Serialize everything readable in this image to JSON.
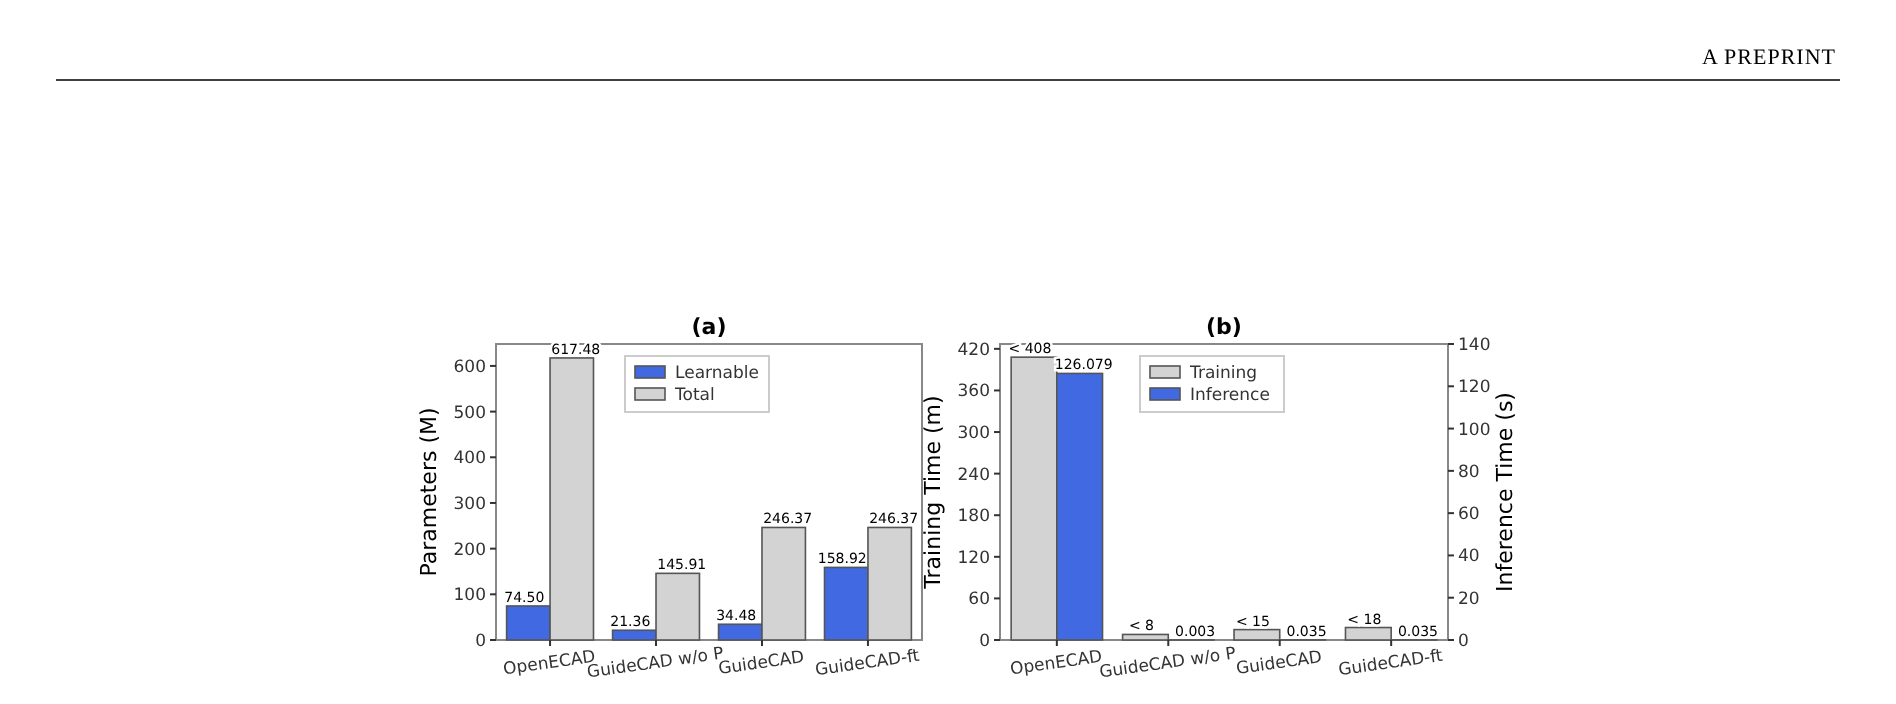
{
  "chart_data": [
    {
      "type": "bar",
      "title": "(a)",
      "ylabel": "Parameters (M)",
      "categories": [
        "OpenECAD",
        "GuideCAD w/o P",
        "GuideCAD",
        "GuideCAD-ft"
      ],
      "series": [
        {
          "name": "Learnable",
          "color": "#4169e1",
          "values": [
            74.5,
            21.36,
            34.48,
            158.92
          ],
          "value_labels": [
            "74.50",
            "21.36",
            "34.48",
            "158.92"
          ]
        },
        {
          "name": "Total",
          "color": "#d3d3d3",
          "values": [
            617.48,
            145.91,
            246.37,
            246.37
          ],
          "value_labels": [
            "617.48",
            "145.91",
            "246.37",
            "246.37"
          ]
        }
      ],
      "ylim": [
        0,
        648
      ],
      "yticks": [
        0,
        100,
        200,
        300,
        400,
        500,
        600
      ],
      "legend": "top",
      "grid": false,
      "annotations": [
        "A PREPRINT"
      ]
    },
    {
      "type": "bar",
      "title": "(b)",
      "ylabel": "Training Time (m)",
      "y2label": "Inference Time (s)",
      "categories": [
        "OpenECAD",
        "GuideCAD w/o P",
        "GuideCAD",
        "GuideCAD-ft"
      ],
      "series": [
        {
          "name": "Training",
          "color": "#d3d3d3",
          "values": [
            408,
            8,
            15,
            18
          ],
          "value_labels": [
            "< 408",
            "< 8",
            "< 15",
            "< 18"
          ]
        },
        {
          "name": "Inference",
          "color": "#4169e1",
          "axis": "y2",
          "values": [
            126.079,
            0.003,
            0.035,
            0.035
          ],
          "value_labels": [
            "126.079",
            "0.003",
            "0.035",
            "0.035"
          ]
        }
      ],
      "ylim": [
        0,
        427
      ],
      "yticks": [
        0,
        60,
        120,
        180,
        240,
        300,
        360,
        420
      ],
      "y2lim": [
        0,
        140
      ],
      "y2ticks": [
        0,
        20,
        40,
        60,
        80,
        100,
        120,
        140
      ],
      "legend": "top",
      "grid": false
    }
  ]
}
